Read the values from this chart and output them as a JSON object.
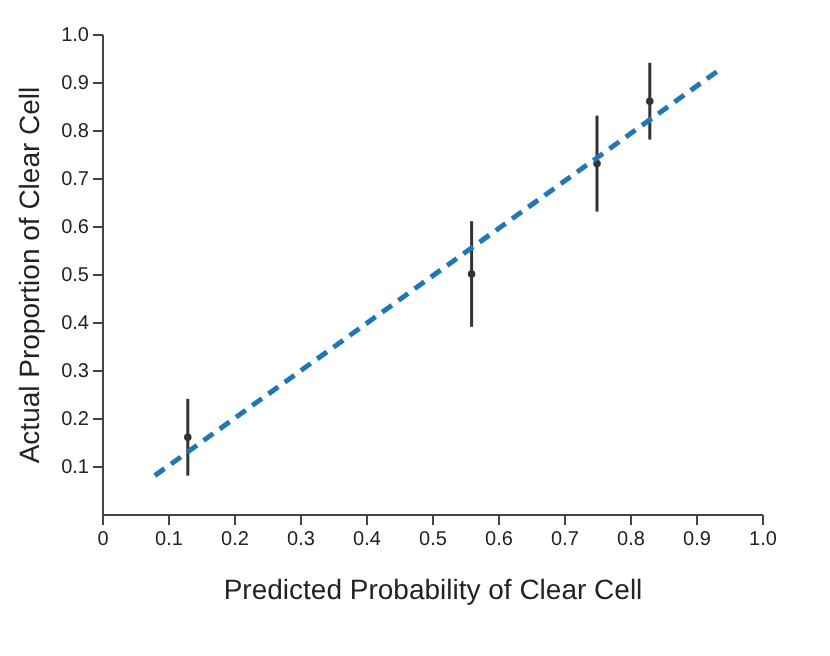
{
  "chart_data": {
    "type": "scatter",
    "xlabel": "Predicted Probability of Clear Cell",
    "ylabel": "Actual Proportion of Clear Cell",
    "xlim": [
      0,
      1.0
    ],
    "ylim": [
      0,
      1.0
    ],
    "xticks": [
      0,
      0.1,
      0.2,
      0.3,
      0.4,
      0.5,
      0.6,
      0.7,
      0.8,
      0.9,
      {
        "value": 1.0,
        "label": "1.0"
      }
    ],
    "yticks": [
      0.1,
      0.2,
      0.3,
      0.4,
      0.5,
      0.6,
      0.7,
      0.8,
      0.9,
      {
        "value": 1.0,
        "label": "1.0"
      }
    ],
    "grid": false,
    "series": [
      {
        "color": "#333333",
        "marker": "circle",
        "x": [
          0.13,
          0.56,
          0.75,
          0.83
        ],
        "values": [
          0.16,
          0.5,
          0.73,
          0.86
        ],
        "errors": [
          [
            0.08,
            0.24
          ],
          [
            0.39,
            0.61
          ],
          [
            0.63,
            0.83
          ],
          [
            0.78,
            0.94
          ]
        ]
      },
      {
        "type": "line",
        "color": "#1f77b4",
        "line_style": "dashed",
        "marker": "none",
        "x": [
          0.08,
          0.94
        ],
        "values": [
          0.08,
          0.93
        ]
      }
    ]
  }
}
